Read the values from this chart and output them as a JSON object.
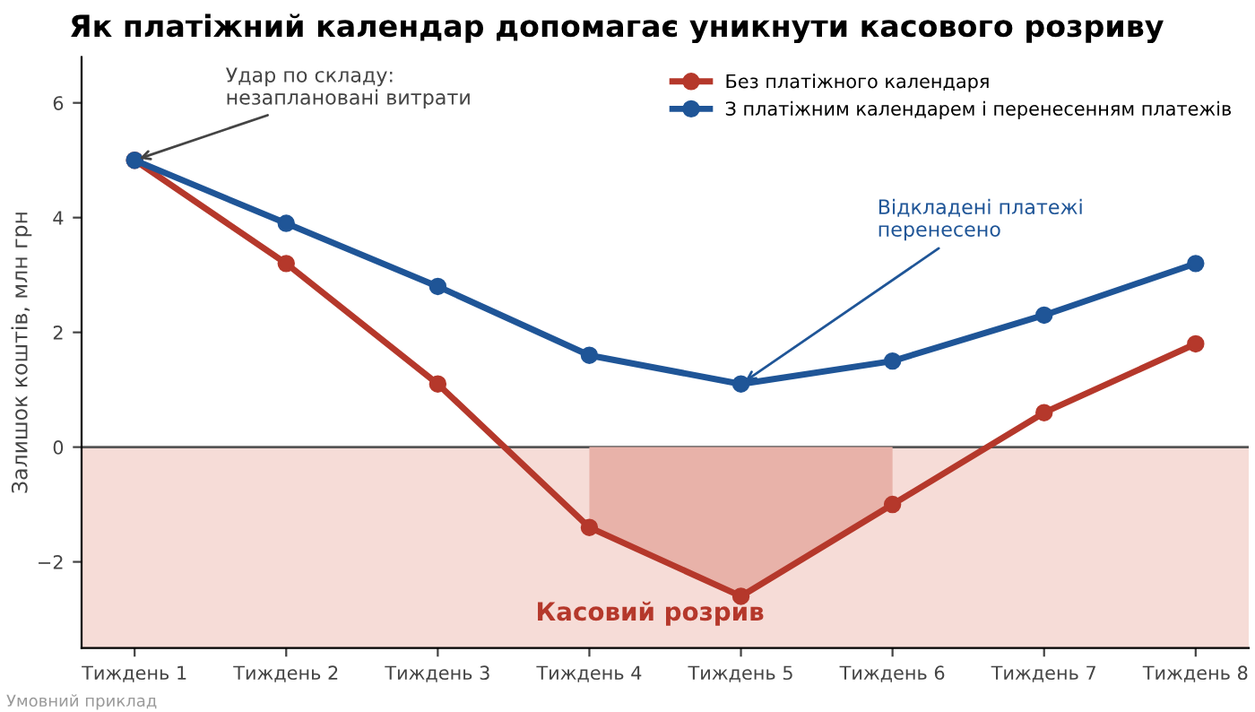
{
  "chart_data": {
    "type": "line",
    "title": "Як платіжний календар допомагає уникнути касового розриву",
    "ylabel": "Залишок коштів, млн грн",
    "categories": [
      "Тиждень 1",
      "Тиждень 2",
      "Тиждень 3",
      "Тиждень 4",
      "Тиждень 5",
      "Тиждень 6",
      "Тиждень 7",
      "Тиждень 8"
    ],
    "series": [
      {
        "type": "area",
        "color": "#e8b2a9",
        "values": [
          null,
          null,
          null,
          -1.4,
          -2.6,
          -1.0,
          null,
          null
        ]
      },
      {
        "name": "Без платіжного календаря",
        "color": "#b5382b",
        "marker": "circle",
        "values": [
          5.0,
          3.2,
          1.1,
          -1.4,
          -2.6,
          -1.0,
          0.6,
          1.8
        ]
      },
      {
        "name": "З платіжним календарем і перенесенням платежів",
        "color": "#1f5597",
        "marker": "circle",
        "values": [
          5.0,
          3.9,
          2.8,
          1.6,
          1.1,
          1.5,
          2.3,
          3.2
        ]
      }
    ],
    "ylim": [
      -3.5,
      6.8
    ],
    "yticks": [
      {
        "value": -2,
        "label": "−2"
      },
      0,
      2,
      4,
      6
    ],
    "bands": [
      {
        "axis": "y",
        "from": -3.5,
        "to": 0,
        "color": "#f6dcd7"
      }
    ],
    "ref_lines": [
      {
        "axis": "y",
        "value": 0,
        "color": "#555555"
      }
    ],
    "annotations": [
      {
        "text": "Удар по складу:\nнезаплановані витрати",
        "x": "Тиждень 1",
        "y": 5.0
      },
      {
        "text": "Відкладені платежі\nперенесено",
        "x": "Тиждень 5",
        "y": 1.1
      },
      "Касовий розрив",
      "Умовний приклад"
    ],
    "grid": false,
    "legend": "top right",
    "line_style": "solid"
  }
}
